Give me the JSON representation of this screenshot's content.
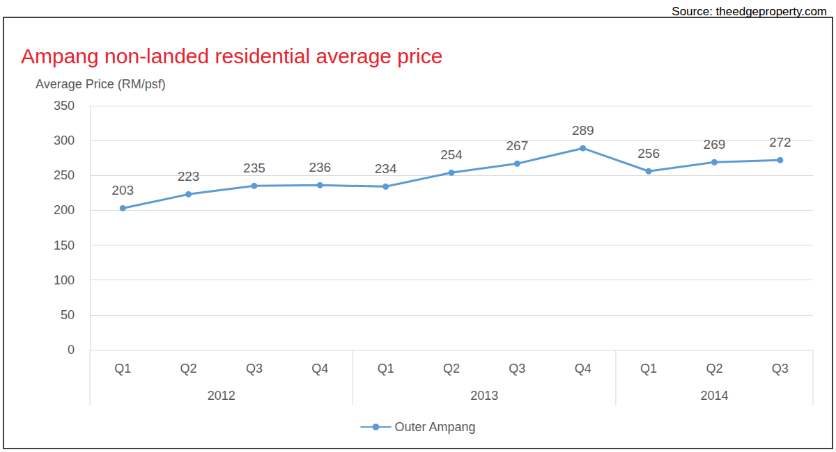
{
  "chart_data": {
    "type": "line",
    "title": "Ampang non-landed residential average price",
    "source": "Source: theedgeproperty.com",
    "y_label": "Average Price (RM/psf)",
    "categories": [
      "Q1",
      "Q2",
      "Q3",
      "Q4",
      "Q1",
      "Q2",
      "Q3",
      "Q4",
      "Q1",
      "Q2",
      "Q3"
    ],
    "x_groups": [
      "2012",
      "2012",
      "2012",
      "2012",
      "2013",
      "2013",
      "2013",
      "2013",
      "2014",
      "2014",
      "2014"
    ],
    "series": [
      {
        "name": "Outer Ampang",
        "color": "#5b9bd5",
        "marker": "circle",
        "values": [
          203,
          223,
          235,
          236,
          234,
          254,
          267,
          289,
          256,
          269,
          272
        ]
      }
    ],
    "ylim": [
      0,
      350
    ],
    "yticks": [
      0,
      50,
      100,
      150,
      200,
      250,
      300,
      350
    ],
    "grid": true,
    "legend": "bottom",
    "data_labels": true
  }
}
